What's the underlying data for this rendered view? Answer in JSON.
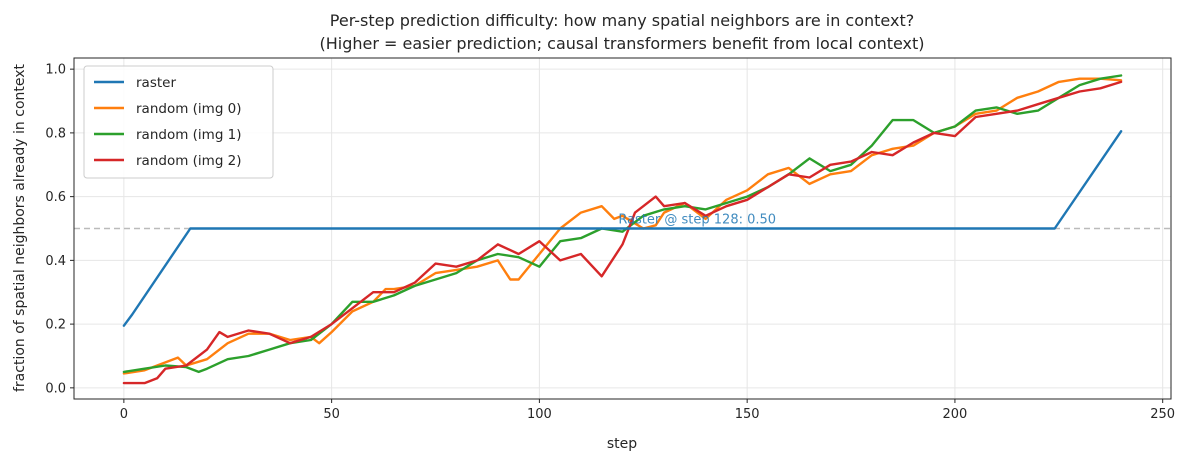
{
  "chart_data": {
    "type": "line",
    "title": "Per-step prediction difficulty: how many spatial neighbors are in context?",
    "subtitle": "(Higher = easier prediction; causal transformers benefit from local context)",
    "xlabel": "step",
    "ylabel": "fraction of spatial neighbors already in context",
    "xlim": [
      -12,
      252
    ],
    "ylim": [
      -0.035,
      1.035
    ],
    "xticks": [
      0,
      50,
      100,
      150,
      200,
      250
    ],
    "yticks": [
      0.0,
      0.2,
      0.4,
      0.6,
      0.8,
      1.0
    ],
    "grid": true,
    "legend": "top-left",
    "reference_line": {
      "y": 0.5,
      "style": "dashed",
      "color": "#bbbbbb"
    },
    "annotation": {
      "text": "Raster @ step 128: 0.50",
      "x": 119,
      "y": 0.51,
      "color": "#1f77b4"
    },
    "series": [
      {
        "name": "raster",
        "color": "#1f77b4",
        "points": [
          [
            0,
            0.195
          ],
          [
            2,
            0.23
          ],
          [
            16,
            0.5
          ],
          [
            224,
            0.5
          ],
          [
            240,
            0.805
          ]
        ]
      },
      {
        "name": "random (img 0)",
        "color": "#ff7f0e",
        "points": [
          [
            0,
            0.045
          ],
          [
            5,
            0.055
          ],
          [
            10,
            0.08
          ],
          [
            13,
            0.095
          ],
          [
            15,
            0.07
          ],
          [
            20,
            0.09
          ],
          [
            25,
            0.14
          ],
          [
            30,
            0.17
          ],
          [
            35,
            0.17
          ],
          [
            40,
            0.15
          ],
          [
            45,
            0.16
          ],
          [
            47,
            0.14
          ],
          [
            50,
            0.175
          ],
          [
            55,
            0.24
          ],
          [
            60,
            0.27
          ],
          [
            63,
            0.31
          ],
          [
            65,
            0.31
          ],
          [
            70,
            0.32
          ],
          [
            75,
            0.36
          ],
          [
            80,
            0.37
          ],
          [
            85,
            0.38
          ],
          [
            90,
            0.4
          ],
          [
            93,
            0.34
          ],
          [
            95,
            0.34
          ],
          [
            100,
            0.42
          ],
          [
            105,
            0.5
          ],
          [
            110,
            0.55
          ],
          [
            115,
            0.57
          ],
          [
            118,
            0.53
          ],
          [
            120,
            0.54
          ],
          [
            125,
            0.5
          ],
          [
            128,
            0.51
          ],
          [
            130,
            0.55
          ],
          [
            135,
            0.58
          ],
          [
            140,
            0.53
          ],
          [
            145,
            0.59
          ],
          [
            150,
            0.62
          ],
          [
            155,
            0.67
          ],
          [
            160,
            0.69
          ],
          [
            165,
            0.64
          ],
          [
            170,
            0.67
          ],
          [
            175,
            0.68
          ],
          [
            180,
            0.73
          ],
          [
            185,
            0.75
          ],
          [
            190,
            0.76
          ],
          [
            195,
            0.8
          ],
          [
            200,
            0.82
          ],
          [
            205,
            0.86
          ],
          [
            210,
            0.87
          ],
          [
            215,
            0.91
          ],
          [
            220,
            0.93
          ],
          [
            225,
            0.96
          ],
          [
            230,
            0.97
          ],
          [
            235,
            0.97
          ],
          [
            240,
            0.965
          ]
        ]
      },
      {
        "name": "random (img 1)",
        "color": "#2ca02c",
        "points": [
          [
            0,
            0.05
          ],
          [
            5,
            0.06
          ],
          [
            10,
            0.07
          ],
          [
            15,
            0.065
          ],
          [
            18,
            0.05
          ],
          [
            20,
            0.06
          ],
          [
            25,
            0.09
          ],
          [
            30,
            0.1
          ],
          [
            35,
            0.12
          ],
          [
            40,
            0.14
          ],
          [
            45,
            0.15
          ],
          [
            50,
            0.2
          ],
          [
            55,
            0.27
          ],
          [
            60,
            0.27
          ],
          [
            65,
            0.29
          ],
          [
            70,
            0.32
          ],
          [
            75,
            0.34
          ],
          [
            80,
            0.36
          ],
          [
            85,
            0.4
          ],
          [
            90,
            0.42
          ],
          [
            95,
            0.41
          ],
          [
            100,
            0.38
          ],
          [
            105,
            0.46
          ],
          [
            110,
            0.47
          ],
          [
            115,
            0.5
          ],
          [
            120,
            0.49
          ],
          [
            125,
            0.54
          ],
          [
            130,
            0.56
          ],
          [
            135,
            0.57
          ],
          [
            140,
            0.56
          ],
          [
            145,
            0.58
          ],
          [
            150,
            0.6
          ],
          [
            155,
            0.63
          ],
          [
            160,
            0.67
          ],
          [
            165,
            0.72
          ],
          [
            170,
            0.68
          ],
          [
            175,
            0.7
          ],
          [
            180,
            0.76
          ],
          [
            185,
            0.84
          ],
          [
            190,
            0.84
          ],
          [
            195,
            0.8
          ],
          [
            200,
            0.82
          ],
          [
            205,
            0.87
          ],
          [
            210,
            0.88
          ],
          [
            215,
            0.86
          ],
          [
            220,
            0.87
          ],
          [
            225,
            0.91
          ],
          [
            230,
            0.95
          ],
          [
            235,
            0.97
          ],
          [
            240,
            0.98
          ]
        ]
      },
      {
        "name": "random (img 2)",
        "color": "#d62728",
        "points": [
          [
            0,
            0.015
          ],
          [
            5,
            0.015
          ],
          [
            8,
            0.03
          ],
          [
            10,
            0.06
          ],
          [
            15,
            0.07
          ],
          [
            20,
            0.12
          ],
          [
            23,
            0.175
          ],
          [
            25,
            0.16
          ],
          [
            30,
            0.18
          ],
          [
            35,
            0.17
          ],
          [
            40,
            0.14
          ],
          [
            45,
            0.16
          ],
          [
            50,
            0.2
          ],
          [
            55,
            0.25
          ],
          [
            60,
            0.3
          ],
          [
            65,
            0.3
          ],
          [
            70,
            0.33
          ],
          [
            75,
            0.39
          ],
          [
            80,
            0.38
          ],
          [
            85,
            0.4
          ],
          [
            90,
            0.45
          ],
          [
            95,
            0.42
          ],
          [
            100,
            0.46
          ],
          [
            105,
            0.4
          ],
          [
            110,
            0.42
          ],
          [
            115,
            0.35
          ],
          [
            120,
            0.45
          ],
          [
            123,
            0.55
          ],
          [
            125,
            0.57
          ],
          [
            128,
            0.6
          ],
          [
            130,
            0.57
          ],
          [
            135,
            0.58
          ],
          [
            140,
            0.54
          ],
          [
            145,
            0.57
          ],
          [
            150,
            0.59
          ],
          [
            155,
            0.63
          ],
          [
            160,
            0.67
          ],
          [
            165,
            0.66
          ],
          [
            170,
            0.7
          ],
          [
            175,
            0.71
          ],
          [
            180,
            0.74
          ],
          [
            185,
            0.73
          ],
          [
            190,
            0.77
          ],
          [
            195,
            0.8
          ],
          [
            200,
            0.79
          ],
          [
            205,
            0.85
          ],
          [
            210,
            0.86
          ],
          [
            215,
            0.87
          ],
          [
            220,
            0.89
          ],
          [
            225,
            0.91
          ],
          [
            230,
            0.93
          ],
          [
            235,
            0.94
          ],
          [
            240,
            0.96
          ]
        ]
      }
    ]
  }
}
